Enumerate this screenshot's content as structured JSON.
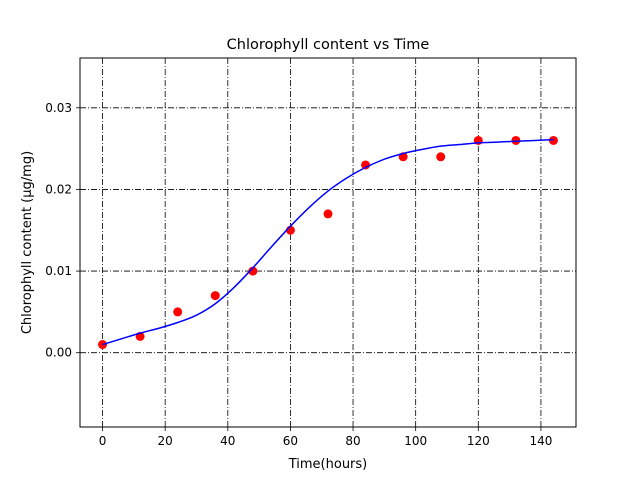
{
  "chart_data": {
    "type": "scatter",
    "title": "Chlorophyll content vs Time",
    "xlabel": "Time(hours)",
    "ylabel": "Chlorophyll content (µg/mg)",
    "xlim": [
      -7.2,
      151.2
    ],
    "ylim": [
      -0.0091,
      0.0361
    ],
    "xticks": [
      0,
      20,
      40,
      60,
      80,
      100,
      120,
      140
    ],
    "xtick_labels": [
      "0",
      "20",
      "40",
      "60",
      "80",
      "100",
      "120",
      "140"
    ],
    "yticks": [
      0.0,
      0.01,
      0.02,
      0.03
    ],
    "ytick_labels": [
      "0.00",
      "0.01",
      "0.02",
      "0.03"
    ],
    "grid": true,
    "grid_style": "dash-dot",
    "series": [
      {
        "kind": "scatter",
        "color": "#ff0000",
        "x": [
          0,
          12,
          24,
          36,
          48,
          60,
          72,
          84,
          96,
          108,
          120,
          132,
          144
        ],
        "y": [
          0.001,
          0.002,
          0.005,
          0.007,
          0.01,
          0.015,
          0.017,
          0.023,
          0.024,
          0.024,
          0.026,
          0.026,
          0.026
        ]
      },
      {
        "kind": "line",
        "color": "#0000ff",
        "x": [
          0,
          6,
          12,
          18,
          24,
          30,
          36,
          42,
          48,
          54,
          60,
          66,
          72,
          78,
          84,
          90,
          96,
          102,
          108,
          114,
          120,
          126,
          132,
          138,
          144
        ],
        "y": [
          0.001,
          0.0017,
          0.0024,
          0.003,
          0.0037,
          0.0046,
          0.006,
          0.008,
          0.0104,
          0.013,
          0.0155,
          0.0178,
          0.0198,
          0.0214,
          0.0227,
          0.0237,
          0.0244,
          0.0249,
          0.0253,
          0.0255,
          0.0257,
          0.0258,
          0.0259,
          0.026,
          0.0261
        ]
      }
    ]
  }
}
